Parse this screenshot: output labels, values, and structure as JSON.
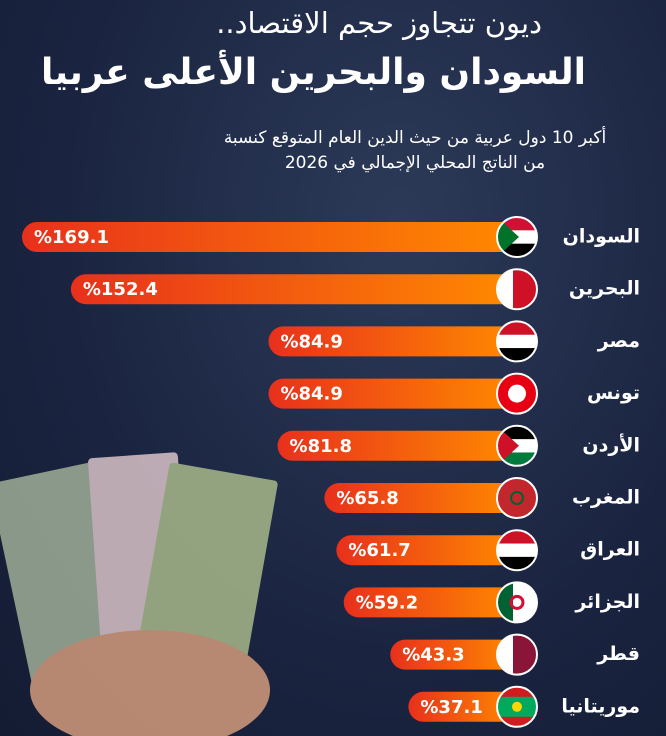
{
  "chart_data": {
    "type": "hbar",
    "title": [
      "ديون تتجاوز حجم الاقتصاد..",
      "السودان والبحرين الأعلى عربيا"
    ],
    "subtitle": [
      "أكبر 10 دول عربية من حيث الدين العام المتوقع كنسبة",
      "من الناتج المحلي الإجمالي في 2026"
    ],
    "categories": [
      "السودان",
      "البحرين",
      "مصر",
      "تونس",
      "الأردن",
      "المغرب",
      "العراق",
      "الجزائر",
      "قطر",
      "موريتانيا"
    ],
    "values": [
      169.1,
      152.4,
      84.9,
      84.9,
      81.8,
      65.8,
      61.7,
      59.2,
      43.3,
      37.1
    ],
    "value_labels": [
      "%169.1",
      "%152.4",
      "%84.9",
      "%84.9",
      "%81.8",
      "%65.8",
      "%61.7",
      "%59.2",
      "%43.3",
      "%37.1"
    ],
    "color": [
      "#e8301c",
      "#ff8a00"
    ]
  }
}
